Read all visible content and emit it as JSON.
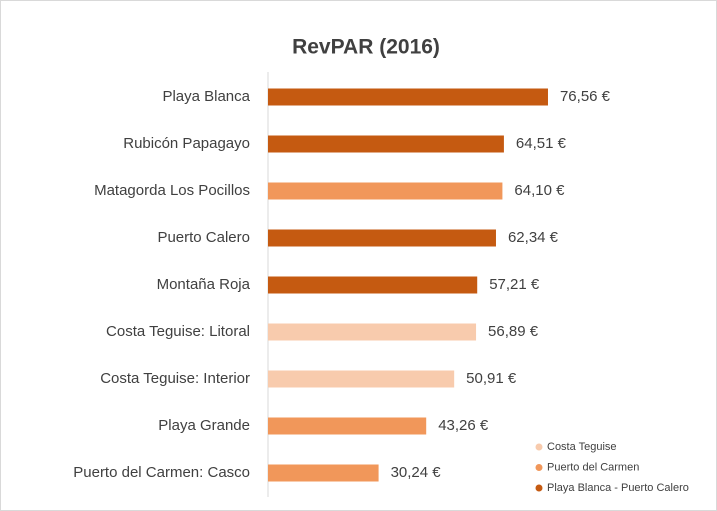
{
  "chart_data": {
    "type": "bar",
    "orientation": "horizontal",
    "title": "RevPAR (2016)",
    "categories": [
      "Playa Blanca",
      "Rubicón Papagayo",
      "Matagorda Los Pocillos",
      "Puerto Calero",
      "Montaña Roja",
      "Costa Teguise: Litoral",
      "Costa Teguise: Interior",
      "Playa Grande",
      "Puerto del Carmen: Casco"
    ],
    "series": [
      {
        "name": "Costa Teguise",
        "color": "#f8cbad",
        "values": [
          null,
          null,
          null,
          null,
          null,
          56.89,
          50.91,
          null,
          null
        ],
        "value_labels": [
          null,
          null,
          null,
          null,
          null,
          "56,89 €",
          "50,91 €",
          null,
          null
        ]
      },
      {
        "name": "Puerto del Carmen",
        "color": "#f1975a",
        "values": [
          null,
          null,
          64.1,
          null,
          null,
          null,
          null,
          43.26,
          30.24
        ],
        "value_labels": [
          null,
          null,
          "64,10 €",
          null,
          null,
          null,
          null,
          "43,26 €",
          "30,24 €"
        ]
      },
      {
        "name": "Playa Blanca - Puerto Calero",
        "color": "#c55a11",
        "values": [
          76.56,
          64.51,
          null,
          62.34,
          57.21,
          null,
          null,
          null,
          null
        ],
        "value_labels": [
          "76,56 €",
          "64,51 €",
          null,
          "62,34 €",
          "57,21 €",
          null,
          null,
          null,
          null
        ]
      }
    ],
    "legend": "bottom-right"
  }
}
